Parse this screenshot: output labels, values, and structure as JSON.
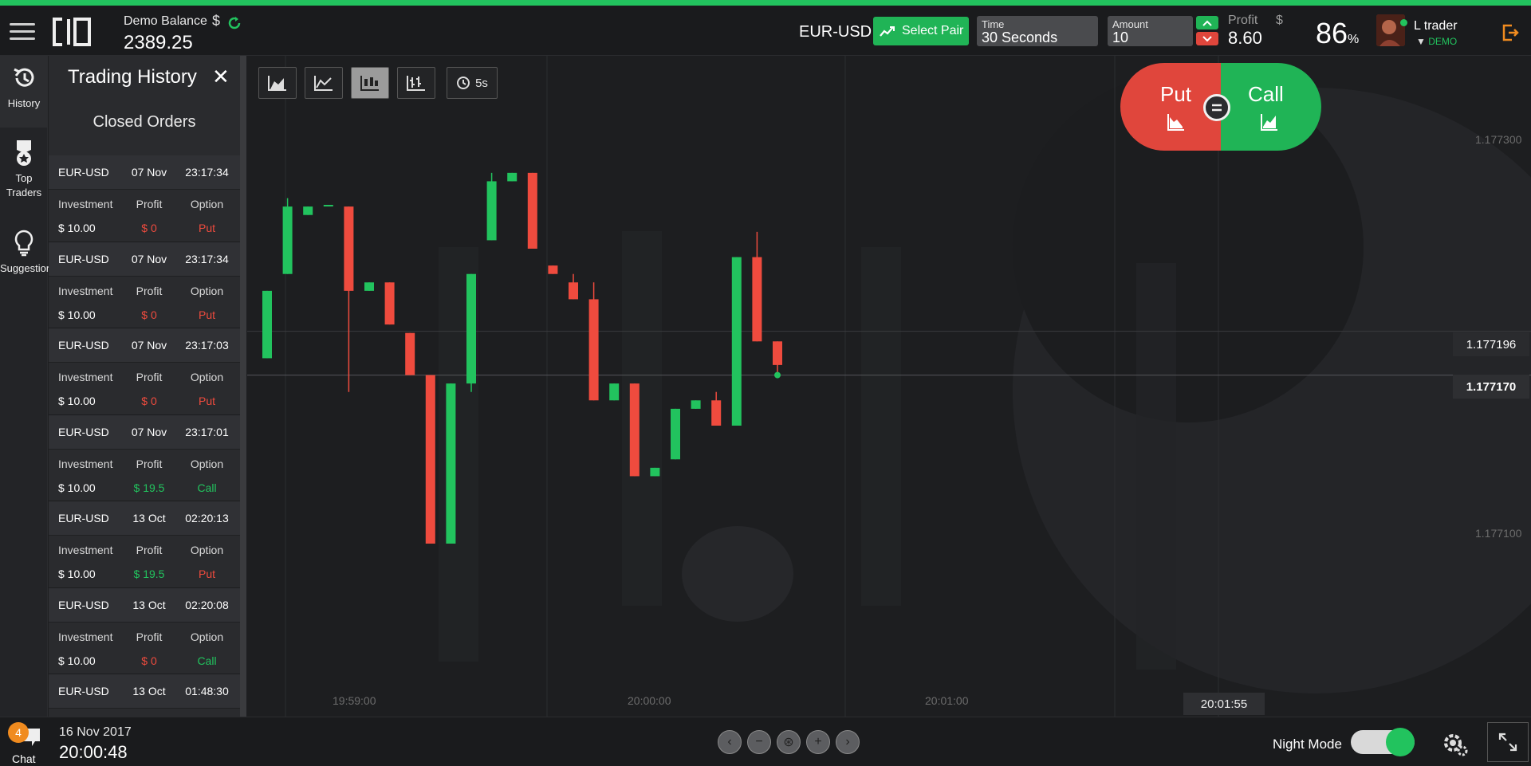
{
  "header": {
    "balance_label": "Demo Balance",
    "balance_value": "2389.25",
    "balance_currency": "$",
    "pair": "EUR-USD",
    "select_pair_label": "Select Pair",
    "time_label": "Time",
    "time_value": "30 Seconds",
    "amount_label": "Amount",
    "amount_value": "10",
    "profit_label": "Profit",
    "profit_currency": "$",
    "profit_value": "8.60",
    "payout_percent": "86",
    "payout_unit": "%",
    "user_name": "L trader",
    "user_mode_arrow": "▼",
    "user_mode": "DEMO"
  },
  "rail": {
    "history": "History",
    "top_traders_1": "Top",
    "top_traders_2": "Traders",
    "suggestions": "Suggestion"
  },
  "history": {
    "title": "Trading History",
    "close": "✕",
    "subtitle": "Closed Orders",
    "col_investment": "Investment",
    "col_profit": "Profit",
    "col_option": "Option",
    "orders": [
      {
        "pair": "EUR-USD",
        "date": "07 Nov",
        "time": "23:17:34",
        "investment": "$ 10.00",
        "profit": "$ 0",
        "option": "Put",
        "win": false
      },
      {
        "pair": "EUR-USD",
        "date": "07 Nov",
        "time": "23:17:34",
        "investment": "$ 10.00",
        "profit": "$ 0",
        "option": "Put",
        "win": false
      },
      {
        "pair": "EUR-USD",
        "date": "07 Nov",
        "time": "23:17:03",
        "investment": "$ 10.00",
        "profit": "$ 0",
        "option": "Put",
        "win": false
      },
      {
        "pair": "EUR-USD",
        "date": "07 Nov",
        "time": "23:17:01",
        "investment": "$ 10.00",
        "profit": "$ 19.5",
        "option": "Call",
        "win": true
      },
      {
        "pair": "EUR-USD",
        "date": "13 Oct",
        "time": "02:20:13",
        "investment": "$ 10.00",
        "profit": "$ 19.5",
        "option": "Put",
        "win": true
      },
      {
        "pair": "EUR-USD",
        "date": "13 Oct",
        "time": "02:20:08",
        "investment": "$ 10.00",
        "profit": "$ 0",
        "option": "Call",
        "win": false
      },
      {
        "pair": "EUR-USD",
        "date": "13 Oct",
        "time": "01:48:30",
        "investment": "",
        "profit": "",
        "option": "",
        "win": false
      }
    ]
  },
  "chart_tools": {
    "interval": "5s"
  },
  "trade_buttons": {
    "put": "Put",
    "call": "Call"
  },
  "chart_data": {
    "type": "candlestick",
    "y_ticks": [
      "1.177300",
      "1.177100"
    ],
    "price_reference": "1.177196",
    "price_current": "1.177170",
    "x_ticks": [
      "19:59:00",
      "20:00:00",
      "20:01:00"
    ],
    "time_current": "20:01:55",
    "ylim": [
      1.177,
      1.17735
    ],
    "candles": [
      {
        "o": 1.17718,
        "c": 1.17722,
        "h": 1.17722,
        "l": 1.17718,
        "up": true
      },
      {
        "o": 1.17723,
        "c": 1.17727,
        "h": 1.177275,
        "l": 1.17723,
        "up": true
      },
      {
        "o": 1.177265,
        "c": 1.17727,
        "h": 1.17727,
        "l": 1.177265,
        "up": true
      },
      {
        "o": 1.177271,
        "c": 1.177271,
        "h": 1.177271,
        "l": 1.177271,
        "up": true
      },
      {
        "o": 1.17727,
        "c": 1.17722,
        "h": 1.17727,
        "l": 1.17716,
        "up": false
      },
      {
        "o": 1.17722,
        "c": 1.177225,
        "h": 1.177225,
        "l": 1.17722,
        "up": true
      },
      {
        "o": 1.177225,
        "c": 1.1772,
        "h": 1.177225,
        "l": 1.1772,
        "up": false
      },
      {
        "o": 1.177195,
        "c": 1.17717,
        "h": 1.177195,
        "l": 1.17717,
        "up": false
      },
      {
        "o": 1.17717,
        "c": 1.17707,
        "h": 1.17717,
        "l": 1.17707,
        "up": false
      },
      {
        "o": 1.17707,
        "c": 1.177165,
        "h": 1.177165,
        "l": 1.17707,
        "up": true
      },
      {
        "o": 1.177165,
        "c": 1.17723,
        "h": 1.17723,
        "l": 1.17716,
        "up": true
      },
      {
        "o": 1.17725,
        "c": 1.177285,
        "h": 1.17729,
        "l": 1.17725,
        "up": true
      },
      {
        "o": 1.17729,
        "c": 1.177285,
        "h": 1.17729,
        "l": 1.177285,
        "up": true
      },
      {
        "o": 1.17729,
        "c": 1.177245,
        "h": 1.17729,
        "l": 1.177245,
        "up": false
      },
      {
        "o": 1.177235,
        "c": 1.17723,
        "h": 1.177235,
        "l": 1.17723,
        "up": false
      },
      {
        "o": 1.177225,
        "c": 1.177215,
        "h": 1.17723,
        "l": 1.177215,
        "up": false
      },
      {
        "o": 1.177215,
        "c": 1.177155,
        "h": 1.177225,
        "l": 1.177155,
        "up": false
      },
      {
        "o": 1.177155,
        "c": 1.177165,
        "h": 1.177165,
        "l": 1.177155,
        "up": true
      },
      {
        "o": 1.177165,
        "c": 1.17711,
        "h": 1.177165,
        "l": 1.17711,
        "up": false
      },
      {
        "o": 1.17711,
        "c": 1.177115,
        "h": 1.177115,
        "l": 1.17711,
        "up": true
      },
      {
        "o": 1.17712,
        "c": 1.17715,
        "h": 1.17715,
        "l": 1.17712,
        "up": true
      },
      {
        "o": 1.17715,
        "c": 1.177155,
        "h": 1.177155,
        "l": 1.17715,
        "up": true
      },
      {
        "o": 1.177155,
        "c": 1.17714,
        "h": 1.17716,
        "l": 1.17714,
        "up": false
      },
      {
        "o": 1.17714,
        "c": 1.17724,
        "h": 1.17724,
        "l": 1.17714,
        "up": true
      },
      {
        "o": 1.17724,
        "c": 1.17719,
        "h": 1.177255,
        "l": 1.17719,
        "up": false
      },
      {
        "o": 1.17719,
        "c": 1.177176,
        "h": 1.17719,
        "l": 1.17717,
        "up": false
      }
    ]
  },
  "footer": {
    "chat_count": "4",
    "chat_label": "Chat",
    "date": "16 Nov 2017",
    "clock": "20:00:48",
    "night_mode_label": "Night Mode"
  },
  "colors": {
    "accent_green": "#22c35e",
    "accent_red": "#e0463c",
    "background": "#1d1e20"
  }
}
